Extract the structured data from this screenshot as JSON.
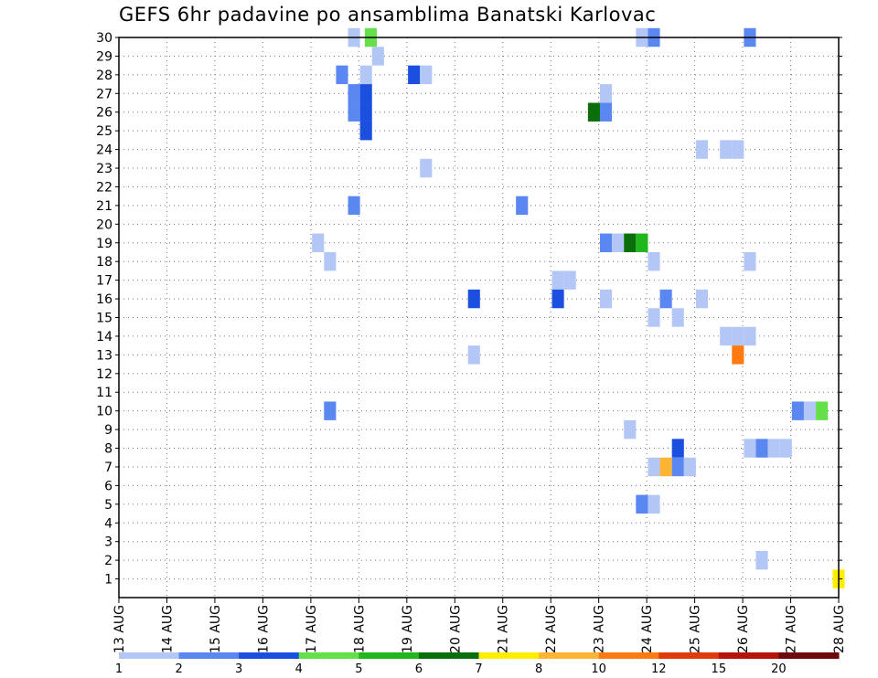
{
  "chart_data": {
    "type": "heatmap",
    "title": "GEFS 6hr padavine po ansamblima Banatski Karlovac",
    "xlabel": "",
    "ylabel": "",
    "x_tick_labels": [
      "13 AUG",
      "14 AUG",
      "15 AUG",
      "16 AUG",
      "17 AUG",
      "18 AUG",
      "19 AUG",
      "20 AUG",
      "21 AUG",
      "22 AUG",
      "23 AUG",
      "24 AUG",
      "25 AUG",
      "26 AUG",
      "27 AUG",
      "28 AUG"
    ],
    "x_range_days": [
      0,
      15
    ],
    "y_tick_labels": [
      "1",
      "2",
      "3",
      "4",
      "5",
      "6",
      "7",
      "8",
      "9",
      "10",
      "11",
      "12",
      "13",
      "14",
      "15",
      "16",
      "17",
      "18",
      "19",
      "20",
      "21",
      "22",
      "23",
      "24",
      "25",
      "26",
      "27",
      "28",
      "29",
      "30"
    ],
    "y_range": [
      0,
      30
    ],
    "grid": true,
    "colorbar": {
      "labels": [
        "1",
        "2",
        "3",
        "4",
        "5",
        "6",
        "7",
        "8",
        "10",
        "12",
        "15",
        "20"
      ],
      "colors": [
        "#b3c7f7",
        "#5b88f0",
        "#1a4fe0",
        "#66e04a",
        "#1fb71b",
        "#0a6e0a",
        "#ffee00",
        "#ffb533",
        "#ff7a10",
        "#e03a0a",
        "#b5140a",
        "#6e0a0a"
      ]
    },
    "cells": [
      {
        "t": 4.9,
        "m": 30,
        "c": 0
      },
      {
        "t": 5.25,
        "m": 30,
        "c": 3
      },
      {
        "t": 10.9,
        "m": 30,
        "c": 0
      },
      {
        "t": 11.15,
        "m": 30,
        "c": 1
      },
      {
        "t": 13.15,
        "m": 30,
        "c": 1
      },
      {
        "t": 5.4,
        "m": 29,
        "c": 0
      },
      {
        "t": 4.65,
        "m": 28,
        "c": 1
      },
      {
        "t": 5.15,
        "m": 28,
        "c": 0
      },
      {
        "t": 6.15,
        "m": 28,
        "c": 2
      },
      {
        "t": 6.4,
        "m": 28,
        "c": 0
      },
      {
        "t": 4.9,
        "m": 27,
        "c": 1
      },
      {
        "t": 5.15,
        "m": 27,
        "c": 2
      },
      {
        "t": 10.15,
        "m": 27,
        "c": 0
      },
      {
        "t": 4.9,
        "m": 26,
        "c": 1
      },
      {
        "t": 5.15,
        "m": 26,
        "c": 2
      },
      {
        "t": 9.9,
        "m": 26,
        "c": 5
      },
      {
        "t": 10.15,
        "m": 26,
        "c": 1
      },
      {
        "t": 5.15,
        "m": 25,
        "c": 2
      },
      {
        "t": 12.15,
        "m": 24,
        "c": 0
      },
      {
        "t": 12.65,
        "m": 24,
        "c": 0
      },
      {
        "t": 12.9,
        "m": 24,
        "c": 0
      },
      {
        "t": 6.4,
        "m": 23,
        "c": 0
      },
      {
        "t": 4.9,
        "m": 21,
        "c": 1
      },
      {
        "t": 8.4,
        "m": 21,
        "c": 1
      },
      {
        "t": 4.15,
        "m": 19,
        "c": 0
      },
      {
        "t": 10.15,
        "m": 19,
        "c": 1
      },
      {
        "t": 10.4,
        "m": 19,
        "c": 0
      },
      {
        "t": 10.65,
        "m": 19,
        "c": 5
      },
      {
        "t": 10.9,
        "m": 19,
        "c": 4
      },
      {
        "t": 4.4,
        "m": 18,
        "c": 0
      },
      {
        "t": 11.15,
        "m": 18,
        "c": 0
      },
      {
        "t": 13.15,
        "m": 18,
        "c": 0
      },
      {
        "t": 9.15,
        "m": 17,
        "c": 0
      },
      {
        "t": 9.4,
        "m": 17,
        "c": 0
      },
      {
        "t": 7.4,
        "m": 16,
        "c": 2
      },
      {
        "t": 9.15,
        "m": 16,
        "c": 2
      },
      {
        "t": 10.15,
        "m": 16,
        "c": 0
      },
      {
        "t": 11.4,
        "m": 16,
        "c": 1
      },
      {
        "t": 12.15,
        "m": 16,
        "c": 0
      },
      {
        "t": 11.15,
        "m": 15,
        "c": 0
      },
      {
        "t": 11.65,
        "m": 15,
        "c": 0
      },
      {
        "t": 12.65,
        "m": 14,
        "c": 0
      },
      {
        "t": 12.9,
        "m": 14,
        "c": 0
      },
      {
        "t": 13.15,
        "m": 14,
        "c": 0
      },
      {
        "t": 7.4,
        "m": 13,
        "c": 0
      },
      {
        "t": 12.9,
        "m": 13,
        "c": 8
      },
      {
        "t": 4.4,
        "m": 10,
        "c": 1
      },
      {
        "t": 14.15,
        "m": 10,
        "c": 1
      },
      {
        "t": 14.4,
        "m": 10,
        "c": 0
      },
      {
        "t": 14.65,
        "m": 10,
        "c": 3
      },
      {
        "t": 10.65,
        "m": 9,
        "c": 0
      },
      {
        "t": 11.65,
        "m": 8,
        "c": 2
      },
      {
        "t": 13.15,
        "m": 8,
        "c": 0
      },
      {
        "t": 13.4,
        "m": 8,
        "c": 1
      },
      {
        "t": 13.65,
        "m": 8,
        "c": 0
      },
      {
        "t": 13.9,
        "m": 8,
        "c": 0
      },
      {
        "t": 11.15,
        "m": 7,
        "c": 0
      },
      {
        "t": 11.4,
        "m": 7,
        "c": 7
      },
      {
        "t": 11.65,
        "m": 7,
        "c": 1
      },
      {
        "t": 11.9,
        "m": 7,
        "c": 0
      },
      {
        "t": 10.9,
        "m": 5,
        "c": 1
      },
      {
        "t": 11.15,
        "m": 5,
        "c": 0
      },
      {
        "t": 13.4,
        "m": 2,
        "c": 0
      },
      {
        "t": 15.0,
        "m": 1,
        "c": 6
      }
    ]
  }
}
